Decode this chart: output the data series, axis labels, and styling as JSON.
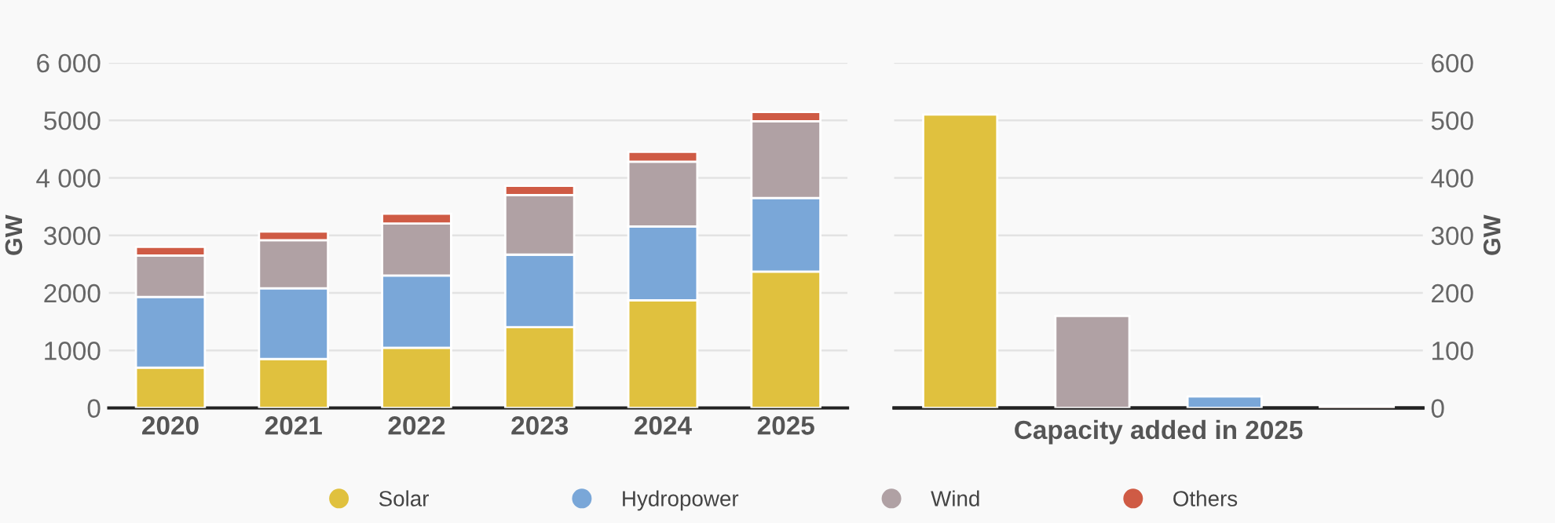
{
  "chart_data": [
    {
      "type": "bar",
      "stacked": true,
      "ylabel": "GW",
      "categories": [
        "2020",
        "2021",
        "2022",
        "2023",
        "2024",
        "2025"
      ],
      "series": [
        {
          "name": "Solar",
          "color": "#e0c13e",
          "values": [
            700,
            850,
            1045,
            1405,
            1870,
            2370
          ]
        },
        {
          "name": "Hydropower",
          "color": "#7aa7d8",
          "values": [
            1230,
            1230,
            1255,
            1260,
            1285,
            1280
          ]
        },
        {
          "name": "Wind",
          "color": "#b0a1a4",
          "values": [
            720,
            835,
            905,
            1035,
            1125,
            1335
          ]
        },
        {
          "name": "Others",
          "color": "#cf5b45",
          "values": [
            150,
            150,
            170,
            160,
            170,
            160
          ]
        }
      ],
      "ylim": [
        0,
        6000
      ],
      "yticks": [
        0,
        1000,
        2000,
        3000,
        {
          "value": 4000,
          "label": "4 000"
        },
        5000,
        {
          "value": 6000,
          "label": "6 000"
        }
      ],
      "grid": "y",
      "legend": "bottom",
      "marker": "circle"
    },
    {
      "type": "bar",
      "xlabel": "Capacity added in 2025",
      "y2label": "GW",
      "categories": [
        null,
        null,
        null,
        null
      ],
      "colors": [
        "#e0c13e",
        "#b0a1a4",
        "#7aa7d8",
        "#cf5b45"
      ],
      "series": [
        {
          "axis": "y2",
          "values": [
            510,
            160,
            20,
            4
          ]
        }
      ],
      "y2lim": [
        0,
        600
      ],
      "y2ticks": [
        0,
        100,
        200,
        300,
        400,
        500,
        600
      ],
      "grid": "y"
    }
  ]
}
